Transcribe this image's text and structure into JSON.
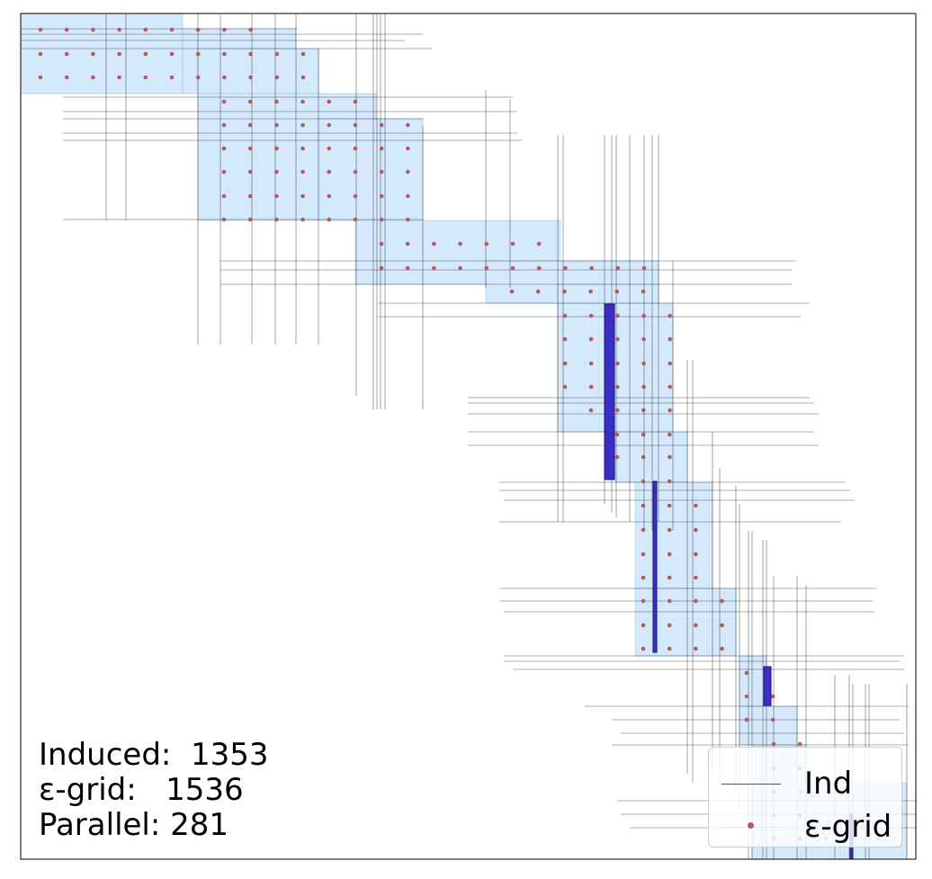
{
  "stats": {
    "induced": "Induced:  1353",
    "egrid": "ε-grid:   1536",
    "parallel": "Parallel: 281"
  },
  "legend": [
    {
      "label": "Ind",
      "marker": "line",
      "color": "#555555"
    },
    {
      "label": "ε-grid",
      "marker": "dot",
      "color": "#b55a5f"
    }
  ],
  "colors": {
    "cell_fill": "#d4e9fb",
    "cell_stroke": "#9fc4e4",
    "line": "#000000",
    "dot": "#b55a5f",
    "parallel": "#3a2ec6"
  }
}
